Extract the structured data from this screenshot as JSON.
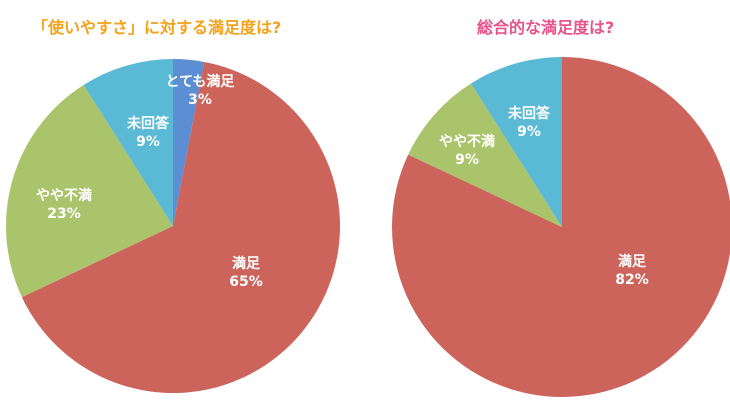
{
  "colors": {
    "title_left": "#f5a21b",
    "title_right": "#e8538a",
    "manzoku": "#cc645b",
    "totemo_manzoku": "#5b8ed3",
    "yaya_fuman": "#a9c46b",
    "mikaitou": "#5ab9d4"
  },
  "chart_data": [
    {
      "type": "pie",
      "title": "「使いやすさ」に対する満足度は?",
      "slices": [
        {
          "label": "とても満足",
          "value": 3,
          "display": "3%",
          "color": "#5b8ed3"
        },
        {
          "label": "満足",
          "value": 65,
          "display": "65%",
          "color": "#cc645b"
        },
        {
          "label": "やや不満",
          "value": 23,
          "display": "23%",
          "color": "#a9c46b"
        },
        {
          "label": "未回答",
          "value": 9,
          "display": "9%",
          "color": "#5ab9d4"
        }
      ]
    },
    {
      "type": "pie",
      "title": "総合的な満足度は?",
      "slices": [
        {
          "label": "満足",
          "value": 82,
          "display": "82%",
          "color": "#cc645b"
        },
        {
          "label": "やや不満",
          "value": 9,
          "display": "9%",
          "color": "#a9c46b"
        },
        {
          "label": "未回答",
          "value": 9,
          "display": "9%",
          "color": "#5ab9d4"
        }
      ]
    }
  ]
}
